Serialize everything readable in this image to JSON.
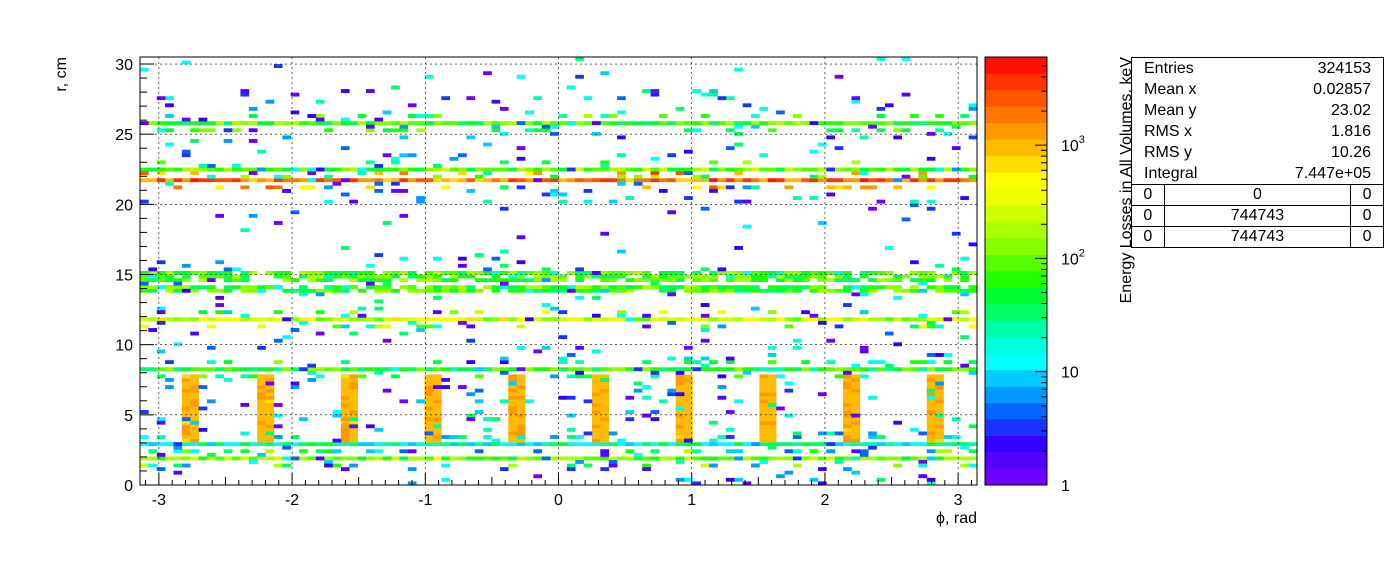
{
  "chart_data": {
    "type": "heatmap",
    "xlabel": "ϕ, rad",
    "ylabel": "r, cm",
    "zlabel": "Energy Losses in All Volumes, keV",
    "xlim": [
      -3.1416,
      3.1416
    ],
    "ylim": [
      0,
      30.5
    ],
    "zlim": [
      1,
      6000
    ],
    "z_scale": "log",
    "x_ticks": [
      -3,
      -2,
      -1,
      0,
      1,
      2,
      3
    ],
    "y_ticks": [
      0,
      5,
      10,
      15,
      20,
      25,
      30
    ],
    "z_ticks": [
      {
        "value": 1,
        "label": "1"
      },
      {
        "value": 10,
        "label": "10"
      },
      {
        "value": 100,
        "label": "10",
        "exp": "2"
      },
      {
        "value": 1000,
        "label": "10",
        "exp": "3"
      }
    ],
    "grid": true,
    "bands": [
      {
        "r": 1.95,
        "typical_z": 120,
        "description": "continuous band"
      },
      {
        "r": 2.9,
        "typical_z": 20,
        "description": "continuous band"
      },
      {
        "r": 8.2,
        "typical_z": 60,
        "description": "band with scatter"
      },
      {
        "r": 11.9,
        "typical_z": 250,
        "description": "thin band"
      },
      {
        "r": 14.5,
        "typical_z": 80,
        "description": "thick layered band"
      },
      {
        "r": 21.8,
        "typical_z": 1800,
        "description": "peak band"
      },
      {
        "r": 22.6,
        "typical_z": 100,
        "description": "band"
      },
      {
        "r": 25.7,
        "typical_z": 80,
        "description": "band"
      }
    ],
    "ladder_columns": {
      "phi": [
        -2.78,
        -2.2,
        -1.58,
        -0.95,
        -0.33,
        0.3,
        0.92,
        1.55,
        2.18,
        2.8
      ],
      "r_range": [
        3.2,
        8.0
      ],
      "typical_z": 1000
    },
    "stats": {
      "entries_label": "Entries",
      "entries": "324153",
      "meanx_label": "Mean x",
      "meanx": "0.02857",
      "meany_label": "Mean y",
      "meany": "23.02",
      "rmsx_label": "RMS x",
      "rmsx": "1.816",
      "rmsy_label": "RMS y",
      "rmsy": "10.26",
      "integral_label": "Integral",
      "integral": "7.447e+05",
      "grid": [
        [
          "0",
          "0",
          "0"
        ],
        [
          "0",
          "744743",
          "0"
        ],
        [
          "0",
          "744743",
          "0"
        ]
      ]
    }
  }
}
